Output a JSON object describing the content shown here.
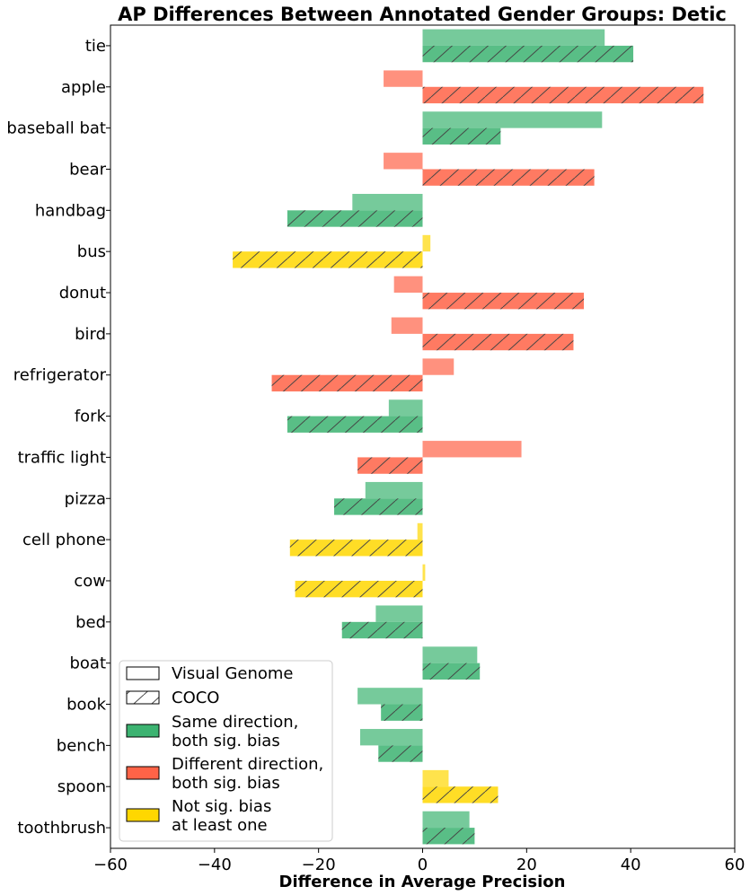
{
  "chart_data": {
    "type": "bar",
    "orientation": "horizontal",
    "title": "AP Differences Between Annotated Gender Groups: Detic",
    "xlabel": "Difference in Average Precision",
    "ylabel": "",
    "xlim": [
      -60,
      60
    ],
    "xticks": [
      -60,
      -40,
      -20,
      0,
      20,
      40,
      60
    ],
    "categories": [
      "tie",
      "apple",
      "baseball bat",
      "bear",
      "handbag",
      "bus",
      "donut",
      "bird",
      "refrigerator",
      "fork",
      "traffic light",
      "pizza",
      "cell phone",
      "cow",
      "bed",
      "boat",
      "book",
      "bench",
      "spoon",
      "toothbrush"
    ],
    "series": [
      {
        "name": "Visual Genome",
        "values": [
          35,
          -7.5,
          34.5,
          -7.5,
          -13.5,
          1.5,
          -5.5,
          -6,
          6,
          -6.5,
          19,
          -11,
          -1,
          0.5,
          -9,
          10.5,
          -12.5,
          -12,
          5,
          9
        ]
      },
      {
        "name": "COCO",
        "values": [
          40.5,
          54,
          15,
          33,
          -26,
          -36.5,
          31,
          29,
          -29,
          -26,
          -12.5,
          -17,
          -25.5,
          -24.5,
          -15.5,
          11,
          -8,
          -8.5,
          14.5,
          10
        ]
      }
    ],
    "groups": [
      "same",
      "different",
      "same",
      "different",
      "same",
      "notsig",
      "different",
      "different",
      "different",
      "same",
      "different",
      "same",
      "notsig",
      "notsig",
      "same",
      "same",
      "same",
      "same",
      "notsig",
      "same"
    ],
    "group_colors": {
      "same": "#3cb371",
      "different": "#ff6347",
      "notsig": "#ffd700"
    },
    "legend": {
      "position": "lower-left",
      "entries": [
        {
          "label": [
            "Visual Genome"
          ],
          "style": "empty"
        },
        {
          "label": [
            "COCO"
          ],
          "style": "hatch"
        },
        {
          "label": [
            "Same direction,",
            "both sig. bias"
          ],
          "group": "same"
        },
        {
          "label": [
            "Different direction,",
            "both sig. bias"
          ],
          "group": "different"
        },
        {
          "label": [
            "Not sig. bias",
            "at least one"
          ],
          "group": "notsig"
        }
      ]
    },
    "grid": false
  }
}
